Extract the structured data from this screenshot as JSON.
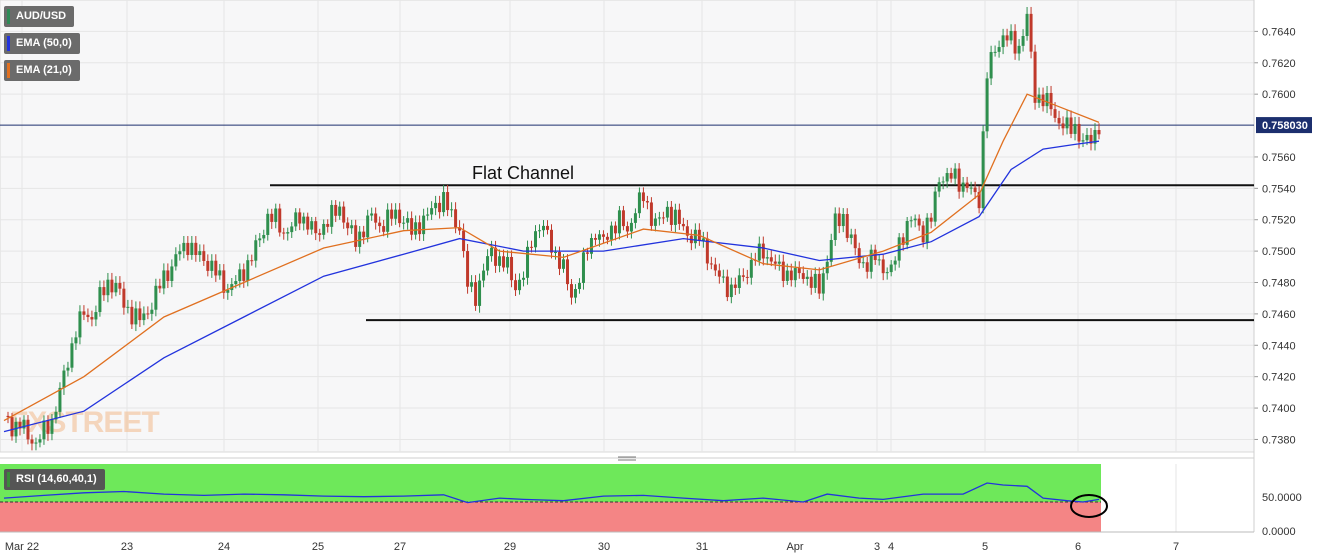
{
  "chart_data": {
    "type": "candlestick",
    "symbol": "AUD/USD",
    "indicators": [
      {
        "label": "EMA (50,0)",
        "color": "#2233dd"
      },
      {
        "label": "EMA (21,0)",
        "color": "#e07020"
      }
    ],
    "price_axis": {
      "ticks": [
        "0.7640",
        "0.7620",
        "0.7600",
        "0.7560",
        "0.7540",
        "0.7520",
        "0.7500",
        "0.7480",
        "0.7460",
        "0.7440",
        "0.7420",
        "0.7400",
        "0.7380"
      ],
      "ylim": [
        0.7372,
        0.766
      ]
    },
    "current_price": "0.758030",
    "x_labels": [
      "Mar 22",
      "23",
      "24",
      "25",
      "27",
      "29",
      "30",
      "31",
      "Apr",
      "3",
      "4",
      "5",
      "6",
      "7"
    ],
    "annotation": "Flat Channel",
    "channel": {
      "upper": 0.7542,
      "lower": 0.7456
    },
    "price_path": [
      [
        0,
        0.7395
      ],
      [
        2,
        0.7388
      ],
      [
        4,
        0.739
      ],
      [
        6,
        0.7382
      ],
      [
        8,
        0.7378
      ],
      [
        10,
        0.7385
      ],
      [
        12,
        0.7392
      ],
      [
        14,
        0.741
      ],
      [
        16,
        0.743
      ],
      [
        18,
        0.745
      ],
      [
        20,
        0.746
      ],
      [
        22,
        0.7458
      ],
      [
        24,
        0.747
      ],
      [
        26,
        0.748
      ],
      [
        28,
        0.7478
      ],
      [
        30,
        0.7466
      ],
      [
        32,
        0.746
      ],
      [
        34,
        0.7456
      ],
      [
        36,
        0.7462
      ],
      [
        38,
        0.7472
      ],
      [
        40,
        0.7484
      ],
      [
        42,
        0.749
      ],
      [
        44,
        0.75
      ],
      [
        46,
        0.7505
      ],
      [
        48,
        0.7498
      ],
      [
        50,
        0.7495
      ],
      [
        52,
        0.749
      ],
      [
        54,
        0.7482
      ],
      [
        56,
        0.7476
      ],
      [
        58,
        0.748
      ],
      [
        60,
        0.7488
      ],
      [
        62,
        0.7496
      ],
      [
        64,
        0.7508
      ],
      [
        66,
        0.7522
      ],
      [
        68,
        0.752
      ],
      [
        70,
        0.7512
      ],
      [
        72,
        0.7515
      ],
      [
        74,
        0.7523
      ],
      [
        76,
        0.7518
      ],
      [
        78,
        0.751
      ],
      [
        80,
        0.7517
      ],
      [
        82,
        0.7522
      ],
      [
        84,
        0.7528
      ],
      [
        86,
        0.7515
      ],
      [
        88,
        0.7506
      ],
      [
        90,
        0.7515
      ],
      [
        92,
        0.7522
      ],
      [
        94,
        0.7516
      ],
      [
        96,
        0.752
      ],
      [
        98,
        0.7524
      ],
      [
        100,
        0.752
      ],
      [
        102,
        0.7512
      ],
      [
        104,
        0.7518
      ],
      [
        106,
        0.7522
      ],
      [
        108,
        0.753
      ],
      [
        110,
        0.7533
      ],
      [
        112,
        0.7522
      ],
      [
        114,
        0.7516
      ],
      [
        116,
        0.7478
      ],
      [
        118,
        0.7472
      ],
      [
        120,
        0.7488
      ],
      [
        122,
        0.75
      ],
      [
        124,
        0.7494
      ],
      [
        126,
        0.749
      ],
      [
        128,
        0.7478
      ],
      [
        130,
        0.7484
      ],
      [
        132,
        0.7508
      ],
      [
        134,
        0.7516
      ],
      [
        136,
        0.751
      ],
      [
        138,
        0.7498
      ],
      [
        140,
        0.7488
      ],
      [
        142,
        0.7472
      ],
      [
        144,
        0.7482
      ],
      [
        146,
        0.7502
      ],
      [
        148,
        0.7512
      ],
      [
        150,
        0.7505
      ],
      [
        152,
        0.7515
      ],
      [
        154,
        0.752
      ],
      [
        156,
        0.7512
      ],
      [
        158,
        0.7528
      ],
      [
        160,
        0.7534
      ],
      [
        162,
        0.7522
      ],
      [
        164,
        0.7518
      ],
      [
        166,
        0.7526
      ],
      [
        168,
        0.7522
      ],
      [
        170,
        0.7513
      ],
      [
        172,
        0.751
      ],
      [
        174,
        0.7508
      ],
      [
        176,
        0.7498
      ],
      [
        178,
        0.7486
      ],
      [
        180,
        0.748
      ],
      [
        182,
        0.7476
      ],
      [
        184,
        0.748
      ],
      [
        186,
        0.7488
      ],
      [
        188,
        0.7496
      ],
      [
        190,
        0.75
      ],
      [
        192,
        0.7494
      ],
      [
        194,
        0.7488
      ],
      [
        196,
        0.7486
      ],
      [
        198,
        0.7484
      ],
      [
        200,
        0.7486
      ],
      [
        202,
        0.748
      ],
      [
        204,
        0.7476
      ],
      [
        206,
        0.7496
      ],
      [
        208,
        0.7518
      ],
      [
        210,
        0.7522
      ],
      [
        212,
        0.7506
      ],
      [
        214,
        0.7494
      ],
      [
        216,
        0.7492
      ],
      [
        218,
        0.7496
      ],
      [
        220,
        0.749
      ],
      [
        222,
        0.7486
      ],
      [
        224,
        0.7506
      ],
      [
        226,
        0.7516
      ],
      [
        228,
        0.752
      ],
      [
        230,
        0.7512
      ],
      [
        232,
        0.752
      ],
      [
        234,
        0.7548
      ],
      [
        236,
        0.7546
      ],
      [
        238,
        0.7548
      ],
      [
        240,
        0.7542
      ],
      [
        242,
        0.7538
      ],
      [
        244,
        0.7534
      ],
      [
        246,
        0.7612
      ],
      [
        248,
        0.763
      ],
      [
        250,
        0.7636
      ],
      [
        252,
        0.7634
      ],
      [
        254,
        0.763
      ],
      [
        256,
        0.7648
      ],
      [
        258,
        0.76
      ],
      [
        260,
        0.7596
      ],
      [
        262,
        0.7592
      ],
      [
        264,
        0.7582
      ],
      [
        266,
        0.7578
      ],
      [
        268,
        0.758
      ],
      [
        270,
        0.7568
      ],
      [
        272,
        0.7572
      ],
      [
        274,
        0.758
      ]
    ],
    "ema21": [
      [
        0,
        0.7392
      ],
      [
        20,
        0.742
      ],
      [
        40,
        0.7458
      ],
      [
        60,
        0.748
      ],
      [
        80,
        0.7502
      ],
      [
        100,
        0.7513
      ],
      [
        114,
        0.7515
      ],
      [
        124,
        0.75
      ],
      [
        140,
        0.7496
      ],
      [
        160,
        0.7514
      ],
      [
        174,
        0.751
      ],
      [
        190,
        0.7492
      ],
      [
        204,
        0.7488
      ],
      [
        220,
        0.75
      ],
      [
        232,
        0.7512
      ],
      [
        244,
        0.7536
      ],
      [
        250,
        0.757
      ],
      [
        256,
        0.76
      ],
      [
        264,
        0.7592
      ],
      [
        274,
        0.7582
      ]
    ],
    "ema50": [
      [
        0,
        0.7385
      ],
      [
        20,
        0.7398
      ],
      [
        40,
        0.7432
      ],
      [
        60,
        0.7458
      ],
      [
        80,
        0.7484
      ],
      [
        100,
        0.7498
      ],
      [
        114,
        0.7508
      ],
      [
        130,
        0.75
      ],
      [
        150,
        0.75
      ],
      [
        170,
        0.7508
      ],
      [
        190,
        0.7502
      ],
      [
        204,
        0.7494
      ],
      [
        220,
        0.7498
      ],
      [
        232,
        0.7506
      ],
      [
        244,
        0.7522
      ],
      [
        252,
        0.7552
      ],
      [
        260,
        0.7565
      ],
      [
        268,
        0.7568
      ],
      [
        274,
        0.757
      ]
    ],
    "rsi": {
      "label": "RSI (14,60,40,1)",
      "ticks": [
        "50.0000",
        "0.0000"
      ],
      "upper_zone": 60,
      "lower_zone": 40,
      "values": [
        [
          0,
          52
        ],
        [
          10,
          56
        ],
        [
          20,
          60
        ],
        [
          30,
          62
        ],
        [
          40,
          58
        ],
        [
          50,
          56
        ],
        [
          60,
          58
        ],
        [
          70,
          57
        ],
        [
          80,
          55
        ],
        [
          90,
          54
        ],
        [
          100,
          55
        ],
        [
          110,
          57
        ],
        [
          116,
          45
        ],
        [
          124,
          52
        ],
        [
          130,
          50
        ],
        [
          140,
          48
        ],
        [
          150,
          55
        ],
        [
          160,
          56
        ],
        [
          170,
          52
        ],
        [
          180,
          48
        ],
        [
          190,
          52
        ],
        [
          200,
          46
        ],
        [
          206,
          58
        ],
        [
          214,
          52
        ],
        [
          220,
          50
        ],
        [
          230,
          58
        ],
        [
          240,
          58
        ],
        [
          246,
          75
        ],
        [
          250,
          72
        ],
        [
          256,
          70
        ],
        [
          260,
          52
        ],
        [
          266,
          48
        ],
        [
          270,
          46
        ],
        [
          274,
          50
        ]
      ]
    }
  },
  "branding": {
    "watermark": "FXSTREET"
  }
}
